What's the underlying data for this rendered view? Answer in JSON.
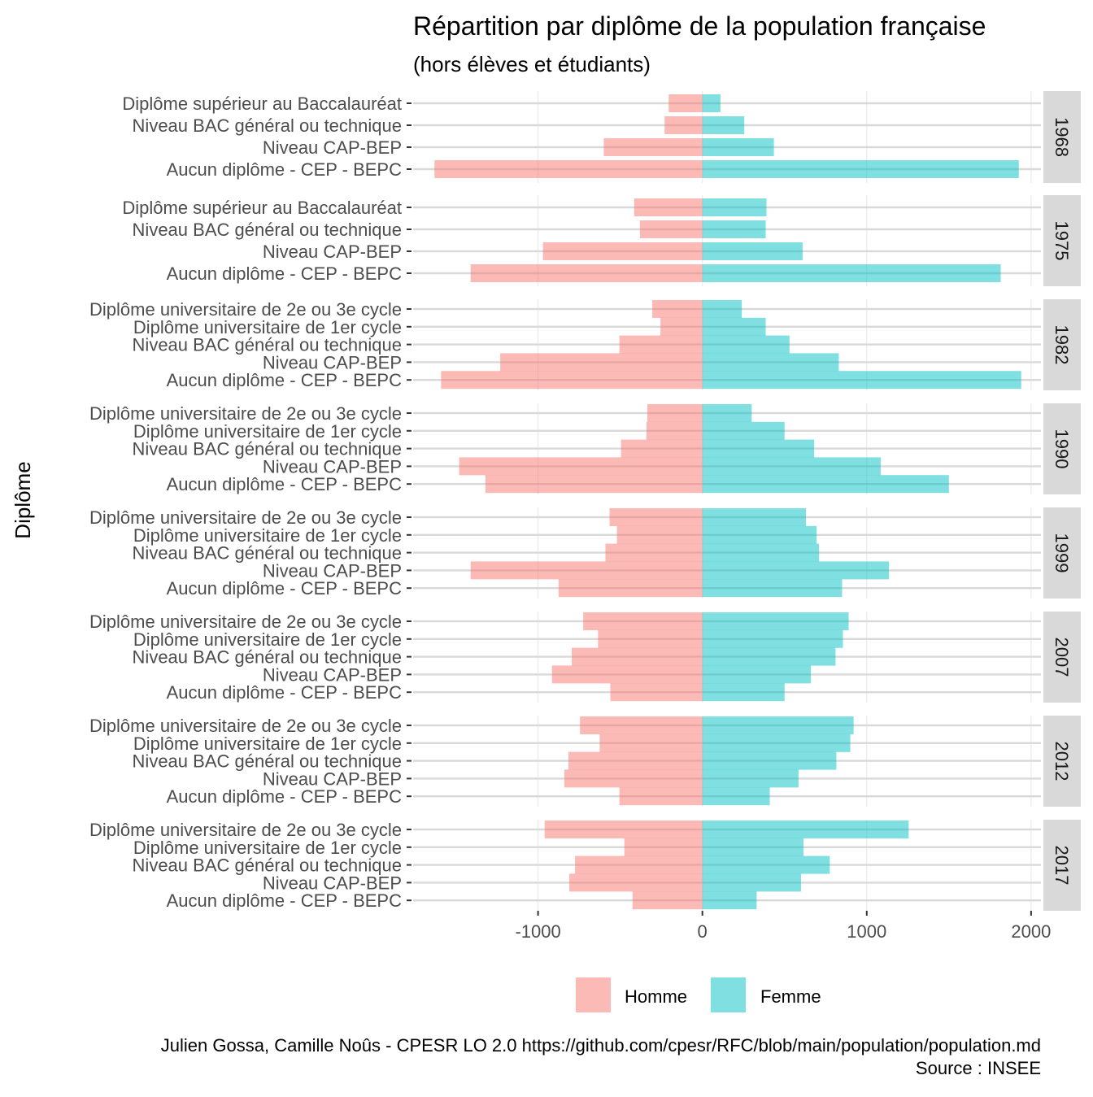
{
  "chart_data": {
    "type": "bar",
    "orientation": "horizontal",
    "layout": "faceted-diverging",
    "title": "Répartition par diplôme de la population française",
    "subtitle": "(hors élèves et étudiants)",
    "xlabel": "",
    "ylabel": "Diplôme",
    "xlim": [
      -1760,
      2060
    ],
    "xticks": [
      -1000,
      0,
      1000,
      2000
    ],
    "xtick_labels": [
      "-1000",
      "0",
      "1000",
      "2000"
    ],
    "grid": true,
    "legend": {
      "position": "bottom",
      "items": [
        {
          "name": "Homme",
          "color": "#F8766D"
        },
        {
          "name": "Femme",
          "color": "#00BFC4"
        }
      ]
    },
    "caption": [
      "Julien Gossa, Camille Noûs - CPESR LO 2.0 https://github.com/cpesr/RFC/blob/main/population/population.md",
      "Source : INSEE"
    ],
    "facets": [
      {
        "year": "1968",
        "categories": [
          "Diplôme supérieur au Baccalauréat",
          "Niveau BAC général ou technique",
          "Niveau CAP-BEP",
          "Aucun diplôme - CEP - BEPC"
        ],
        "homme": [
          -205,
          -230,
          -600,
          -1630
        ],
        "femme": [
          110,
          255,
          435,
          1925
        ]
      },
      {
        "year": "1975",
        "categories": [
          "Diplôme supérieur au Baccalauréat",
          "Niveau BAC général ou technique",
          "Niveau CAP-BEP",
          "Aucun diplôme - CEP - BEPC"
        ],
        "homme": [
          -415,
          -380,
          -970,
          -1410
        ],
        "femme": [
          390,
          385,
          610,
          1815
        ]
      },
      {
        "year": "1982",
        "categories": [
          "Diplôme universitaire de 2e ou 3e cycle",
          "Diplôme universitaire de 1er cycle",
          "Niveau BAC général ou technique",
          "Niveau CAP-BEP",
          "Aucun diplôme - CEP - BEPC"
        ],
        "homme": [
          -305,
          -255,
          -505,
          -1230,
          -1590
        ],
        "femme": [
          240,
          385,
          530,
          830,
          1940
        ]
      },
      {
        "year": "1990",
        "categories": [
          "Diplôme universitaire de 2e ou 3e cycle",
          "Diplôme universitaire de 1er cycle",
          "Niveau BAC général ou technique",
          "Niveau CAP-BEP",
          "Aucun diplôme - CEP - BEPC"
        ],
        "homme": [
          -335,
          -340,
          -495,
          -1480,
          -1320
        ],
        "femme": [
          300,
          500,
          680,
          1085,
          1500
        ]
      },
      {
        "year": "1999",
        "categories": [
          "Diplôme universitaire de 2e ou 3e cycle",
          "Diplôme universitaire de 1er cycle",
          "Niveau BAC général ou technique",
          "Niveau CAP-BEP",
          "Aucun diplôme - CEP - BEPC"
        ],
        "homme": [
          -565,
          -520,
          -590,
          -1410,
          -875
        ],
        "femme": [
          630,
          695,
          710,
          1135,
          850
        ]
      },
      {
        "year": "2007",
        "categories": [
          "Diplôme universitaire de 2e ou 3e cycle",
          "Diplôme universitaire de 1er cycle",
          "Niveau BAC général ou technique",
          "Niveau CAP-BEP",
          "Aucun diplôme - CEP - BEPC"
        ],
        "homme": [
          -725,
          -635,
          -795,
          -915,
          -560
        ],
        "femme": [
          890,
          855,
          810,
          660,
          500
        ]
      },
      {
        "year": "2012",
        "categories": [
          "Diplôme universitaire de 2e ou 3e cycle",
          "Diplôme universitaire de 1er cycle",
          "Niveau BAC général ou technique",
          "Niveau CAP-BEP",
          "Aucun diplôme - CEP - BEPC"
        ],
        "homme": [
          -745,
          -625,
          -815,
          -840,
          -505
        ],
        "femme": [
          920,
          900,
          815,
          585,
          410
        ]
      },
      {
        "year": "2017",
        "categories": [
          "Diplôme universitaire de 2e ou 3e cycle",
          "Diplôme universitaire de 1er cycle",
          "Niveau BAC général ou technique",
          "Niveau CAP-BEP",
          "Aucun diplôme - CEP - BEPC"
        ],
        "homme": [
          -960,
          -475,
          -775,
          -810,
          -425
        ],
        "femme": [
          1255,
          615,
          775,
          600,
          330
        ]
      }
    ]
  }
}
